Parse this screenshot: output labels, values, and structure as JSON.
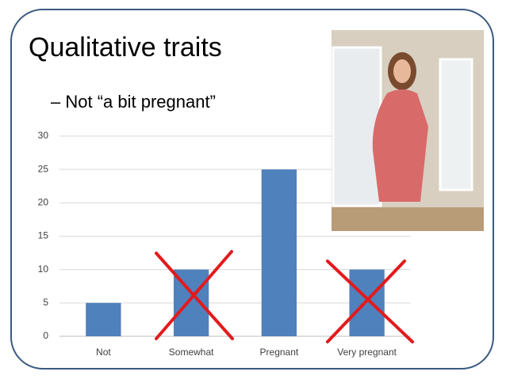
{
  "title": "Qualitative traits",
  "bullet": "– Not “a  bit pregnant”",
  "chart_data": {
    "type": "bar",
    "categories": [
      "Not",
      "Somewhat",
      "Pregnant",
      "Very pregnant"
    ],
    "values": [
      5,
      10,
      25,
      10
    ],
    "color": "#4f81bd",
    "ylim": [
      0,
      30
    ],
    "yticks": [
      0,
      5,
      10,
      15,
      20,
      25,
      30
    ],
    "grid": true
  }
}
